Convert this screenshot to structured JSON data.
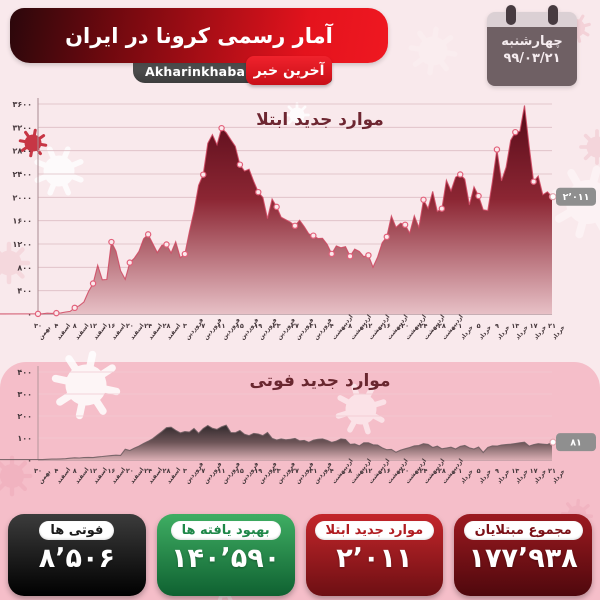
{
  "header": {
    "title": "آمار رسمی کرونا در ایران",
    "site": "Akharinkhabar.ir",
    "logo_tag": "آخرین خبر",
    "weekday": "چهارشنبه",
    "date": "۹۹/۰۳/۲۱"
  },
  "colors": {
    "accent": "#e4131d",
    "dark-red": "#6f0a12",
    "green": "#2e9e57",
    "black": "#141414",
    "page-pink": "#f9e9ec",
    "panel-pink": "#f5bec9",
    "tag-gray": "#8f8f8f",
    "chart1-dark": "#570b19",
    "chart2-dark": "#322a2d"
  },
  "chart_data": [
    {
      "type": "area",
      "title": "موارد جدید ابتلا",
      "end_label": "۲٬۰۱۱",
      "ylim": [
        0,
        3600
      ],
      "grid": true,
      "y_tick_values": [
        3600,
        3200,
        2800,
        2400,
        2000,
        1600,
        1200,
        800,
        400,
        0
      ],
      "y_ticks": [
        "۳۶۰۰",
        "۳۲۰۰",
        "۲۸۰۰",
        "۲۴۰۰",
        "۲۰۰۰",
        "۱۶۰۰",
        "۱۲۰۰",
        "۸۰۰",
        "۴۰۰",
        "۰"
      ],
      "tick_every": 4,
      "x_tick_days": [
        "۳۰",
        "۴",
        "۸",
        "۱۲",
        "۱۶",
        "۲۰",
        "۲۴",
        "۲۸",
        "۳",
        "۷",
        "۱۱",
        "۱۵",
        "۱۹",
        "۲۳",
        "۲۷",
        "۳۱",
        "۴",
        "۸",
        "۱۲",
        "۱۶",
        "۲۰",
        "۲۴",
        "۲۸",
        "۱",
        "۵",
        "۹",
        "۱۳",
        "۱۷",
        "۲۱"
      ],
      "x_tick_months": [
        "بهمن",
        "اسفند",
        "اسفند",
        "اسفند",
        "اسفند",
        "اسفند",
        "اسفند",
        "اسفند",
        "فروردین",
        "فروردین",
        "فروردین",
        "فروردین",
        "فروردین",
        "فروردین",
        "فروردین",
        "فروردین",
        "اردیبهشت",
        "اردیبهشت",
        "اردیبهشت",
        "اردیبهشت",
        "اردیبهشت",
        "اردیبهشت",
        "اردیبهشت",
        "خرداد",
        "خرداد",
        "خرداد",
        "خرداد",
        "خرداد",
        "خرداد"
      ],
      "values": [
        2,
        3,
        13,
        10,
        15,
        18,
        34,
        44,
        106,
        143,
        205,
        385,
        523,
        835,
        586,
        591,
        1234,
        1076,
        743,
        595,
        881,
        958,
        1075,
        1289,
        1365,
        1209,
        1053,
        1178,
        1192,
        1046,
        1237,
        966,
        1028,
        1411,
        1762,
        2206,
        2389,
        2926,
        3076,
        2901,
        3186,
        3110,
        2988,
        2875,
        2560,
        2449,
        2483,
        2274,
        2089,
        1997,
        1634,
        1972,
        1837,
        1657,
        1617,
        1574,
        1512,
        1606,
        1499,
        1374,
        1343,
        1294,
        1297,
        1194,
        1030,
        1168,
        1134,
        1153,
        991,
        1112,
        1073,
        983,
        1006,
        802,
        976,
        1223,
        1323,
        1680,
        1485,
        1556,
        1529,
        1383,
        1683,
        1481,
        1958,
        1808,
        2102,
        1757,
        1806,
        2294,
        2111,
        2346,
        2392,
        2311,
        1869,
        2180,
        2023,
        1787,
        1772,
        2258,
        2819,
        2282,
        2516,
        2979,
        3117,
        3134,
        3574,
        2886,
        2269,
        2364,
        2043,
        2095,
        2011
      ]
    },
    {
      "type": "area",
      "title": "موارد جدید فوتی",
      "end_label": "۸۱",
      "ylim": [
        0,
        400
      ],
      "grid": true,
      "y_tick_values": [
        400,
        300,
        200,
        100,
        0
      ],
      "y_ticks": [
        "۴۰۰",
        "۳۰۰",
        "۲۰۰",
        "۱۰۰",
        "۰"
      ],
      "tick_every": 4,
      "x_tick_days": [
        "۳۰",
        "۴",
        "۸",
        "۱۲",
        "۱۶",
        "۲۰",
        "۲۴",
        "۲۸",
        "۳",
        "۷",
        "۱۱",
        "۱۵",
        "۱۹",
        "۲۳",
        "۲۷",
        "۳۱",
        "۴",
        "۸",
        "۱۲",
        "۱۶",
        "۲۰",
        "۲۴",
        "۲۸",
        "۱",
        "۵",
        "۹",
        "۱۳",
        "۱۷",
        "۲۱"
      ],
      "x_tick_months": [
        "بهمن",
        "اسفند",
        "اسفند",
        "اسفند",
        "اسفند",
        "اسفند",
        "اسفند",
        "اسفند",
        "فروردین",
        "فروردین",
        "فروردین",
        "فروردین",
        "فروردین",
        "فروردین",
        "فروردین",
        "فروردین",
        "اردیبهشت",
        "اردیبهشت",
        "اردیبهشت",
        "اردیبهشت",
        "اردیبهشت",
        "اردیبهشت",
        "اردیبهشت",
        "خرداد",
        "خرداد",
        "خرداد",
        "خرداد",
        "خرداد",
        "خرداد"
      ],
      "values": [
        2,
        2,
        3,
        4,
        4,
        5,
        6,
        8,
        10,
        9,
        11,
        12,
        11,
        14,
        16,
        18,
        20,
        22,
        21,
        49,
        43,
        54,
        63,
        75,
        85,
        97,
        113,
        129,
        147,
        149,
        135,
        123,
        129,
        127,
        143,
        122,
        143,
        157,
        144,
        139,
        151,
        158,
        125,
        124,
        134,
        117,
        111,
        121,
        118,
        111,
        125,
        98,
        91,
        96,
        92,
        94,
        98,
        87,
        89,
        80,
        90,
        94,
        96,
        89,
        80,
        86,
        96,
        93,
        71,
        73,
        64,
        78,
        78,
        69,
        68,
        55,
        47,
        48,
        35,
        45,
        51,
        57,
        64,
        66,
        74,
        71,
        57,
        63,
        51,
        54,
        58,
        50,
        62,
        66,
        55,
        50,
        59,
        34,
        57,
        64,
        63,
        68,
        70,
        72,
        75,
        78,
        81,
        63,
        70,
        74,
        72,
        70,
        81
      ]
    }
  ],
  "stats": [
    {
      "label": "مجموع مبتلایان",
      "value": "۱۷۷٬۹۳۸"
    },
    {
      "label": "موارد جدید ابتلا",
      "value": "۲٬۰۱۱"
    },
    {
      "label": "بهبود یافته ها",
      "value": "۱۴۰٬۵۹۰"
    },
    {
      "label": "فوتی ها",
      "value": "۸٬۵۰۶"
    }
  ]
}
